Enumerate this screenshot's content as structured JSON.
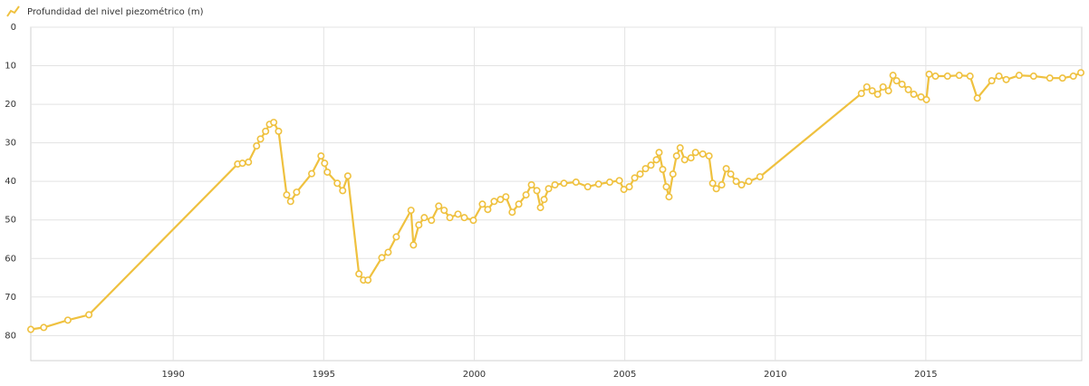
{
  "chart_data": {
    "type": "line",
    "series": [
      {
        "name": "Profundidad del nivel piezométrico (m)",
        "color": "#efc13f"
      }
    ],
    "x": [
      1985.27,
      1985.7,
      1986.5,
      1987.2,
      1992.14,
      1992.3,
      1992.5,
      1992.77,
      1992.9,
      1993.07,
      1993.2,
      1993.34,
      1993.5,
      1993.77,
      1993.9,
      1994.1,
      1994.6,
      1994.91,
      1995.03,
      1995.12,
      1995.45,
      1995.63,
      1995.8,
      1996.17,
      1996.32,
      1996.47,
      1996.93,
      1997.14,
      1997.41,
      1997.9,
      1997.98,
      1998.16,
      1998.34,
      1998.58,
      1998.82,
      1999,
      1999.19,
      1999.46,
      1999.67,
      1999.97,
      2000.27,
      2000.45,
      2000.66,
      2000.87,
      2001.05,
      2001.26,
      2001.48,
      2001.72,
      2001.9,
      2002.08,
      2002.2,
      2002.32,
      2002.47,
      2002.68,
      2002.98,
      2003.38,
      2003.77,
      2004.13,
      2004.5,
      2004.82,
      2004.97,
      2005.15,
      2005.33,
      2005.51,
      2005.69,
      2005.87,
      2006.05,
      2006.14,
      2006.26,
      2006.38,
      2006.47,
      2006.6,
      2006.72,
      2006.84,
      2006.99,
      2007.2,
      2007.35,
      2007.59,
      2007.8,
      2007.92,
      2008.04,
      2008.22,
      2008.37,
      2008.52,
      2008.7,
      2008.88,
      2009.12,
      2009.49,
      2012.86,
      2013.04,
      2013.22,
      2013.4,
      2013.58,
      2013.76,
      2013.91,
      2014.03,
      2014.21,
      2014.42,
      2014.6,
      2014.84,
      2015.02,
      2015.11,
      2015.32,
      2015.72,
      2016.11,
      2016.47,
      2016.71,
      2017.19,
      2017.43,
      2017.67,
      2018.1,
      2018.58,
      2019.12,
      2019.54,
      2019.9,
      2020.15
    ],
    "values": [
      78.4,
      77.9,
      76,
      74.6,
      35.5,
      35.3,
      35,
      30.8,
      29,
      27,
      25.2,
      24.7,
      27,
      43.5,
      45.2,
      42.8,
      38,
      33.4,
      35.3,
      37.6,
      40.5,
      42.4,
      38.6,
      64,
      65.6,
      65.6,
      59.8,
      58.4,
      54.4,
      47.5,
      56.5,
      51.3,
      49.4,
      50.1,
      46.4,
      47.5,
      49.4,
      48.5,
      49.4,
      50.1,
      45.9,
      47.3,
      45.2,
      44.7,
      44,
      48,
      45.9,
      43.5,
      40.9,
      42.4,
      46.8,
      44.7,
      41.9,
      40.9,
      40.5,
      40.2,
      41.4,
      40.7,
      40.2,
      39.8,
      42.1,
      41.4,
      39.1,
      38.1,
      36.7,
      35.8,
      34.4,
      32.5,
      36.9,
      41.4,
      44,
      38.1,
      33.4,
      31.3,
      34.4,
      33.9,
      32.5,
      32.9,
      33.4,
      40.5,
      41.9,
      40.9,
      36.7,
      38.1,
      40,
      40.9,
      40,
      38.8,
      17.2,
      15.5,
      16.5,
      17.4,
      15.5,
      16.5,
      12.5,
      13.9,
      14.8,
      16.2,
      17.4,
      18.1,
      18.8,
      12.2,
      12.7,
      12.7,
      12.5,
      12.7,
      18.4,
      13.9,
      12.7,
      13.6,
      12.5,
      12.7,
      13.2,
      13.2,
      12.7,
      11.8
    ],
    "xlim": [
      1985.27,
      2020.18
    ],
    "xticks": [
      1990,
      1995,
      2000,
      2005,
      2010,
      2015
    ],
    "ylim": [
      0,
      86.5
    ],
    "yticks": [
      0,
      10,
      20,
      30,
      40,
      50,
      60,
      70,
      80
    ],
    "y_inverted": true,
    "grid": true
  }
}
